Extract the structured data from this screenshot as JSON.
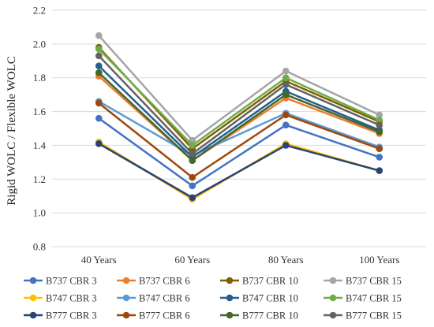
{
  "chart_data": {
    "type": "line",
    "title": "",
    "xlabel": "",
    "ylabel": "Rigid WOLC / Flexible WOLC",
    "categories": [
      "40 Years",
      "60 Years",
      "80 Years",
      "100 Years"
    ],
    "ylim": [
      0.8,
      2.2
    ],
    "yticks": [
      "0.8",
      "1.0",
      "1.2",
      "1.4",
      "1.6",
      "1.8",
      "2.0",
      "2.2"
    ],
    "grid": "horizontal",
    "legend_position": "bottom",
    "series": [
      {
        "name": "B737 CBR 3",
        "color": "#4472C4",
        "values": [
          1.56,
          1.16,
          1.52,
          1.33
        ]
      },
      {
        "name": "B737 CBR 6",
        "color": "#ED7D31",
        "values": [
          1.81,
          1.31,
          1.68,
          1.47
        ]
      },
      {
        "name": "B737 CBR 10",
        "color": "#7F6000",
        "values": [
          1.98,
          1.38,
          1.78,
          1.54
        ]
      },
      {
        "name": "B737 CBR 15",
        "color": "#A5A5A5",
        "values": [
          2.05,
          1.43,
          1.84,
          1.58
        ]
      },
      {
        "name": "B747 CBR 3",
        "color": "#FFC000",
        "values": [
          1.42,
          1.08,
          1.41,
          1.25
        ]
      },
      {
        "name": "B747 CBR 6",
        "color": "#5B9BD5",
        "values": [
          1.66,
          1.34,
          1.59,
          1.39
        ]
      },
      {
        "name": "B747 CBR 10",
        "color": "#255E91",
        "values": [
          1.87,
          1.33,
          1.72,
          1.49
        ]
      },
      {
        "name": "B747 CBR 15",
        "color": "#70AD47",
        "values": [
          1.97,
          1.4,
          1.8,
          1.55
        ]
      },
      {
        "name": "B777 CBR 3",
        "color": "#264478",
        "values": [
          1.41,
          1.09,
          1.4,
          1.25
        ]
      },
      {
        "name": "B777 CBR 6",
        "color": "#9E480E",
        "values": [
          1.65,
          1.21,
          1.58,
          1.38
        ]
      },
      {
        "name": "B777 CBR 10",
        "color": "#43682B",
        "values": [
          1.83,
          1.31,
          1.7,
          1.48
        ]
      },
      {
        "name": "B777 CBR 15",
        "color": "#636363",
        "values": [
          1.93,
          1.35,
          1.76,
          1.52
        ]
      }
    ]
  }
}
